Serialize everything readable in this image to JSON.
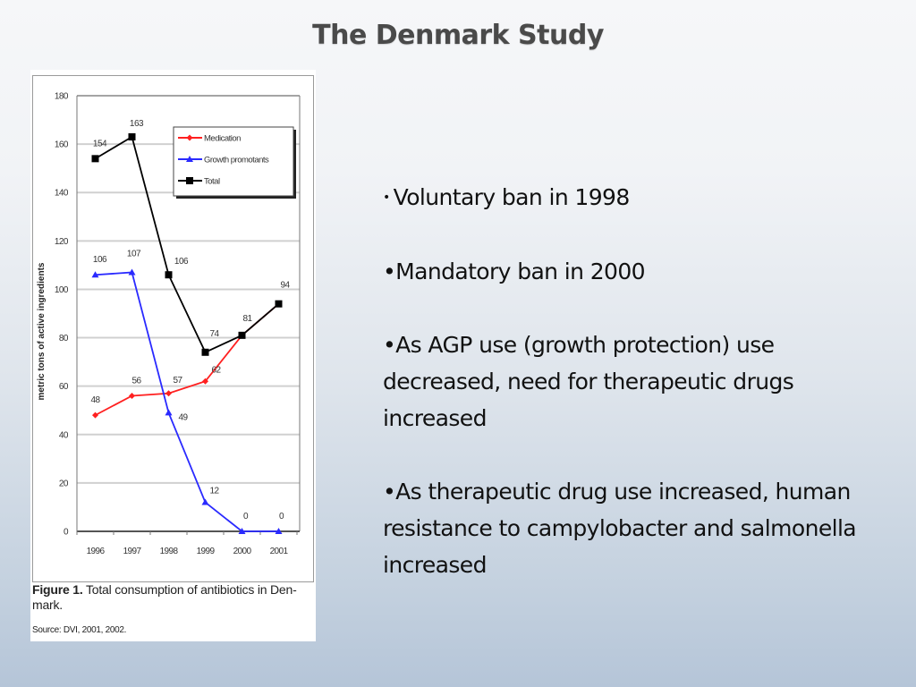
{
  "slide": {
    "title": "The Denmark Study",
    "bullets": [
      {
        "marker": "•",
        "marker_small": true,
        "text": "Voluntary ban in 1998"
      },
      {
        "marker": "•",
        "marker_small": false,
        "text": "Mandatory ban in 2000"
      },
      {
        "marker": "•",
        "marker_small": false,
        "text": "As AGP use (growth protection) use decreased, need for therapeutic drugs increased"
      },
      {
        "marker": "•",
        "marker_small": false,
        "text": "As therapeutic drug use increased, human resistance to campylobacter and salmonella increased"
      }
    ]
  },
  "figure": {
    "caption_label": "Figure 1.",
    "caption_text": " Total consumption of antibiotics in Den-mark.",
    "source": "Source: DVI, 2001, 2002."
  },
  "chart_data": {
    "type": "line",
    "title": "",
    "xlabel": "",
    "ylabel": "metric tons of active ingredients",
    "categories": [
      "1996",
      "1997",
      "1998",
      "1999",
      "2000",
      "2001"
    ],
    "ylim": [
      0,
      180
    ],
    "yticks": [
      0,
      20,
      40,
      60,
      80,
      100,
      120,
      140,
      160,
      180
    ],
    "grid": true,
    "legend_position": "top-right",
    "series": [
      {
        "name": "Medication",
        "color": "#ff2020",
        "marker": "diamond",
        "values": [
          48,
          56,
          57,
          62,
          81,
          94
        ],
        "labels": [
          "48",
          "56",
          "57",
          "62",
          "",
          ""
        ]
      },
      {
        "name": "Growth promotants",
        "color": "#2a2aff",
        "marker": "triangle",
        "values": [
          106,
          107,
          49,
          12,
          0,
          0
        ],
        "labels": [
          "106",
          "",
          "49",
          "12",
          "0",
          "0"
        ]
      },
      {
        "name": "Total",
        "color": "#000000",
        "marker": "square",
        "values": [
          154,
          163,
          106,
          74,
          81,
          94
        ],
        "labels": [
          "154",
          "163",
          "106",
          "74",
          "81",
          "94"
        ]
      }
    ],
    "extra_labels": [
      {
        "series": "Growth promotants",
        "index": 1,
        "text": "107"
      }
    ]
  }
}
